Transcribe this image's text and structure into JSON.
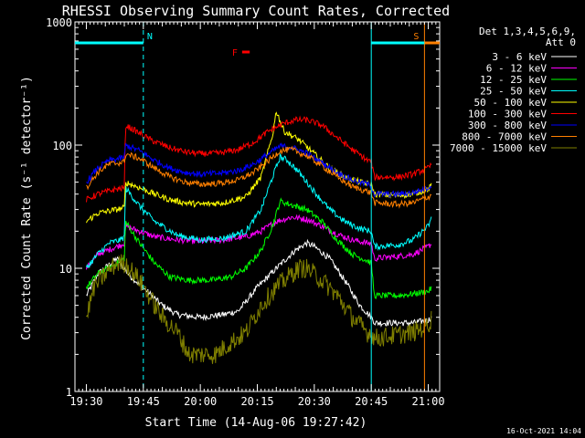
{
  "chart_data": {
    "type": "line",
    "title": "RHESSI Observing Summary Count Rates, Corrected",
    "xlabel": "Start Time (14-Aug-06 19:27:42)",
    "ylabel": "Corrected Count Rate (s⁻¹ detector⁻¹)",
    "yscale": "log",
    "ylim": [
      1,
      1000
    ],
    "xlim_minutes": [
      -3,
      93
    ],
    "x_ticks": [
      {
        "label": "19:30",
        "minute": 0
      },
      {
        "label": "19:45",
        "minute": 15
      },
      {
        "label": "20:00",
        "minute": 30
      },
      {
        "label": "20:15",
        "minute": 45
      },
      {
        "label": "20:30",
        "minute": 60
      },
      {
        "label": "20:45",
        "minute": 75
      },
      {
        "label": "21:00",
        "minute": 90
      }
    ],
    "y_ticks": [
      {
        "label": "1",
        "value": 1
      },
      {
        "label": "10",
        "value": 10
      },
      {
        "label": "100",
        "value": 100
      },
      {
        "label": "1000",
        "value": 1000
      }
    ],
    "legend_header": [
      "Det 1,3,4,5,6,9,",
      "Att 0"
    ],
    "legend_position": "right",
    "series": [
      {
        "name": "3 - 6 keV",
        "color": "#ffffff",
        "points": [
          [
            0,
            6
          ],
          [
            3,
            9
          ],
          [
            8,
            12
          ],
          [
            10,
            10
          ],
          [
            11,
            9
          ],
          [
            16,
            6.5
          ],
          [
            20,
            5
          ],
          [
            24,
            4.2
          ],
          [
            30,
            4
          ],
          [
            36,
            4.2
          ],
          [
            40,
            4.5
          ],
          [
            45,
            7
          ],
          [
            50,
            10
          ],
          [
            55,
            14
          ],
          [
            58,
            16
          ],
          [
            60,
            15
          ],
          [
            64,
            12
          ],
          [
            68,
            8
          ],
          [
            72,
            5
          ],
          [
            75,
            4
          ],
          [
            76,
            3.6
          ],
          [
            86,
            3.6
          ],
          [
            90,
            3.8
          ],
          [
            91,
            4
          ]
        ]
      },
      {
        "name": "6 - 12 keV",
        "color": "#ff00ff",
        "points": [
          [
            0,
            10
          ],
          [
            3,
            13
          ],
          [
            8,
            15
          ],
          [
            10,
            16
          ],
          [
            10.3,
            22
          ],
          [
            14,
            20
          ],
          [
            18,
            18
          ],
          [
            24,
            17
          ],
          [
            30,
            16.5
          ],
          [
            36,
            17
          ],
          [
            42,
            18
          ],
          [
            46,
            20
          ],
          [
            50,
            24
          ],
          [
            54,
            26
          ],
          [
            58,
            25
          ],
          [
            62,
            22
          ],
          [
            66,
            19
          ],
          [
            70,
            17
          ],
          [
            74,
            16
          ],
          [
            75,
            16
          ],
          [
            75.8,
            12
          ],
          [
            82,
            12.5
          ],
          [
            86,
            13
          ],
          [
            90,
            15
          ],
          [
            91,
            16
          ]
        ]
      },
      {
        "name": "12 - 25 keV",
        "color": "#00ff00",
        "points": [
          [
            0,
            7
          ],
          [
            3,
            9
          ],
          [
            8,
            11
          ],
          [
            10,
            12
          ],
          [
            10.3,
            24
          ],
          [
            14,
            16
          ],
          [
            18,
            11
          ],
          [
            22,
            8.5
          ],
          [
            27,
            8
          ],
          [
            33,
            8
          ],
          [
            38,
            8.5
          ],
          [
            42,
            10
          ],
          [
            46,
            14
          ],
          [
            49,
            22
          ],
          [
            51,
            35
          ],
          [
            55,
            32
          ],
          [
            58,
            30
          ],
          [
            62,
            24
          ],
          [
            66,
            17
          ],
          [
            70,
            13
          ],
          [
            74,
            11.5
          ],
          [
            75,
            11
          ],
          [
            75.8,
            6
          ],
          [
            82,
            6
          ],
          [
            86,
            6.2
          ],
          [
            90,
            6.5
          ],
          [
            91,
            7
          ]
        ]
      },
      {
        "name": "25 - 50 keV",
        "color": "#00ffff",
        "points": [
          [
            0,
            10
          ],
          [
            3,
            13
          ],
          [
            6,
            16
          ],
          [
            9,
            17
          ],
          [
            10,
            18
          ],
          [
            10.3,
            45
          ],
          [
            14,
            32
          ],
          [
            18,
            24
          ],
          [
            24,
            18.5
          ],
          [
            30,
            17
          ],
          [
            36,
            17.5
          ],
          [
            42,
            20
          ],
          [
            46,
            30
          ],
          [
            49,
            55
          ],
          [
            51,
            80
          ],
          [
            53,
            75
          ],
          [
            56,
            60
          ],
          [
            60,
            42
          ],
          [
            64,
            30
          ],
          [
            68,
            24
          ],
          [
            72,
            21
          ],
          [
            75,
            20
          ],
          [
            75.8,
            15
          ],
          [
            82,
            15.5
          ],
          [
            86,
            17
          ],
          [
            90,
            22
          ],
          [
            91,
            26
          ]
        ]
      },
      {
        "name": "50 - 100 keV",
        "color": "#ffff00",
        "points": [
          [
            0,
            24
          ],
          [
            3,
            28
          ],
          [
            8,
            30
          ],
          [
            10,
            31
          ],
          [
            10.3,
            50
          ],
          [
            14,
            45
          ],
          [
            18,
            40
          ],
          [
            22,
            36
          ],
          [
            26,
            34
          ],
          [
            30,
            33
          ],
          [
            36,
            34
          ],
          [
            42,
            38
          ],
          [
            46,
            55
          ],
          [
            49,
            120
          ],
          [
            50,
            190
          ],
          [
            52,
            130
          ],
          [
            56,
            110
          ],
          [
            60,
            85
          ],
          [
            64,
            65
          ],
          [
            68,
            55
          ],
          [
            72,
            50
          ],
          [
            75,
            48
          ],
          [
            75.8,
            40
          ],
          [
            82,
            39
          ],
          [
            86,
            40
          ],
          [
            90,
            44
          ],
          [
            91,
            48
          ]
        ]
      },
      {
        "name": "100 - 300 keV",
        "color": "#ff0000",
        "points": [
          [
            0,
            36
          ],
          [
            3,
            40
          ],
          [
            8,
            44
          ],
          [
            10,
            45
          ],
          [
            10.3,
            145
          ],
          [
            13,
            130
          ],
          [
            17,
            110
          ],
          [
            22,
            95
          ],
          [
            26,
            88
          ],
          [
            30,
            85
          ],
          [
            35,
            86
          ],
          [
            40,
            92
          ],
          [
            44,
            105
          ],
          [
            48,
            130
          ],
          [
            52,
            150
          ],
          [
            55,
            160
          ],
          [
            58,
            160
          ],
          [
            62,
            145
          ],
          [
            66,
            115
          ],
          [
            70,
            92
          ],
          [
            74,
            75
          ],
          [
            75,
            74
          ],
          [
            75.8,
            55
          ],
          [
            82,
            55
          ],
          [
            86,
            58
          ],
          [
            90,
            65
          ],
          [
            91,
            70
          ]
        ]
      },
      {
        "name": "300 - 800 keV",
        "color": "#0000ff",
        "points": [
          [
            0,
            50
          ],
          [
            3,
            65
          ],
          [
            6,
            75
          ],
          [
            9,
            78
          ],
          [
            10,
            80
          ],
          [
            10.3,
            100
          ],
          [
            14,
            90
          ],
          [
            18,
            75
          ],
          [
            22,
            65
          ],
          [
            26,
            60
          ],
          [
            30,
            58
          ],
          [
            35,
            59
          ],
          [
            40,
            62
          ],
          [
            44,
            70
          ],
          [
            48,
            85
          ],
          [
            51,
            98
          ],
          [
            54,
            96
          ],
          [
            58,
            86
          ],
          [
            62,
            72
          ],
          [
            66,
            60
          ],
          [
            70,
            52
          ],
          [
            74,
            48
          ],
          [
            75,
            47
          ],
          [
            75.8,
            40
          ],
          [
            82,
            40
          ],
          [
            86,
            41
          ],
          [
            90,
            45
          ],
          [
            91,
            48
          ]
        ]
      },
      {
        "name": "800 - 7000 keV",
        "color": "#ff8000",
        "points": [
          [
            0,
            45
          ],
          [
            3,
            60
          ],
          [
            6,
            70
          ],
          [
            9,
            72
          ],
          [
            10,
            73
          ],
          [
            10.3,
            85
          ],
          [
            14,
            78
          ],
          [
            18,
            65
          ],
          [
            22,
            55
          ],
          [
            26,
            50
          ],
          [
            30,
            48
          ],
          [
            35,
            49
          ],
          [
            40,
            52
          ],
          [
            44,
            60
          ],
          [
            48,
            75
          ],
          [
            51,
            90
          ],
          [
            54,
            92
          ],
          [
            58,
            82
          ],
          [
            62,
            68
          ],
          [
            66,
            55
          ],
          [
            70,
            46
          ],
          [
            74,
            42
          ],
          [
            75,
            41
          ],
          [
            75.8,
            34
          ],
          [
            82,
            33
          ],
          [
            86,
            34
          ],
          [
            90,
            38
          ],
          [
            91,
            40
          ]
        ]
      },
      {
        "name": "7000 - 15000 keV",
        "color": "#808000",
        "points": [
          [
            0,
            4
          ],
          [
            2,
            7
          ],
          [
            5,
            9
          ],
          [
            8,
            11
          ],
          [
            10,
            11
          ],
          [
            10.3,
            11
          ],
          [
            14,
            8
          ],
          [
            18,
            5
          ],
          [
            20,
            4
          ],
          [
            24,
            3
          ],
          [
            27,
            2
          ],
          [
            30,
            2
          ],
          [
            34,
            2
          ],
          [
            38,
            2.5
          ],
          [
            42,
            3
          ],
          [
            46,
            5
          ],
          [
            50,
            7
          ],
          [
            54,
            9
          ],
          [
            56,
            10
          ],
          [
            58,
            10
          ],
          [
            62,
            8
          ],
          [
            66,
            6
          ],
          [
            70,
            4
          ],
          [
            74,
            3
          ],
          [
            75,
            3
          ],
          [
            75.8,
            2.7
          ],
          [
            86,
            3
          ],
          [
            90,
            3.5
          ],
          [
            91,
            4
          ]
        ]
      }
    ],
    "flag_bars": [
      {
        "label": "N",
        "color": "#00ffff",
        "x_start_minute": -3,
        "x_end_minute": 15
      },
      {
        "label": "",
        "color": "#00ffff",
        "x_start_minute": 75,
        "x_end_minute": 89
      },
      {
        "label": "F",
        "color": "#ff0000",
        "x_start_minute": 41,
        "x_end_minute": 43
      },
      {
        "label": "S",
        "color": "#ff8000",
        "x_start_minute": 89,
        "x_end_minute": 93
      }
    ],
    "vertical_markers": [
      {
        "minute": -3,
        "color": "#00ffff",
        "style": "solid"
      },
      {
        "minute": 15,
        "color": "#00ffff",
        "style": "dashed"
      },
      {
        "minute": 75,
        "color": "#00ffff",
        "style": "solid"
      },
      {
        "minute": 89,
        "color": "#ff8000",
        "style": "solid"
      },
      {
        "minute": 93,
        "color": "#ff8000",
        "style": "dashed"
      }
    ]
  },
  "footer_timestamp": "16-Oct-2021 14:04"
}
